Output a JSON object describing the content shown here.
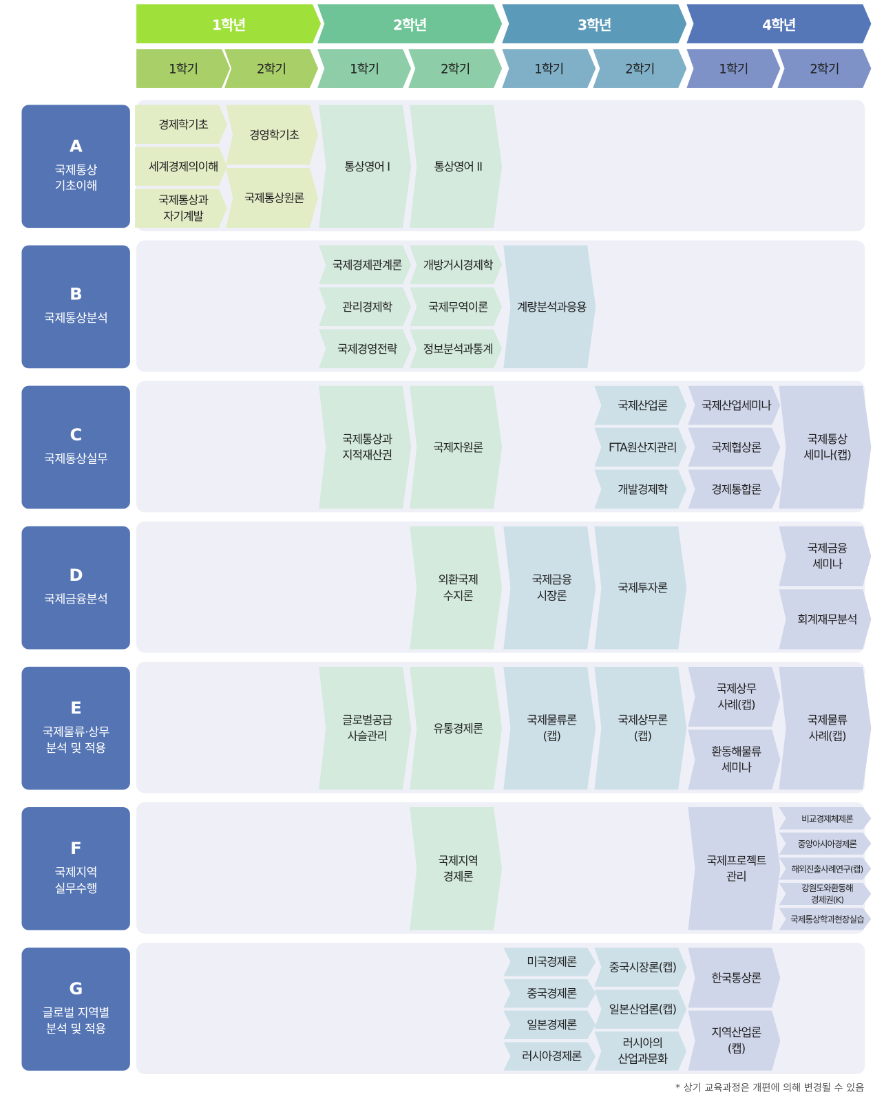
{
  "years": [
    {
      "label": "1학년",
      "color": "#9fe03a",
      "sem_color": "#a9cf69",
      "course_color": "#e2edc5"
    },
    {
      "label": "2학년",
      "color": "#6ec497",
      "sem_color": "#8dcda7",
      "course_color": "#d3eadc"
    },
    {
      "label": "3학년",
      "color": "#5b9ab8",
      "sem_color": "#7fb0c8",
      "course_color": "#cde0e8"
    },
    {
      "label": "4학년",
      "color": "#5577b8",
      "sem_color": "#7f92c8",
      "course_color": "#d0d6ea"
    }
  ],
  "semesters": [
    "1학기",
    "2학기",
    "1학기",
    "2학기",
    "1학기",
    "2학기",
    "1학기",
    "2학기"
  ],
  "label_color": "#5474b4",
  "rows": [
    {
      "letter": "A",
      "title": "국제통상\n기초이해",
      "cells": [
        {
          "col": 0,
          "items": [
            "경제학기초",
            "세계경제의이해",
            "국제통상과\n자기계발"
          ]
        },
        {
          "col": 1,
          "items": [
            "경영학기초",
            "국제통상원론"
          ]
        },
        {
          "col": 2,
          "items": [
            "통상영어 I"
          ]
        },
        {
          "col": 3,
          "items": [
            "통상영어 II"
          ]
        }
      ]
    },
    {
      "letter": "B",
      "title": "국제통상분석",
      "cells": [
        {
          "col": 2,
          "items": [
            "국제경제관계론",
            "관리경제학",
            "국제경영전략"
          ]
        },
        {
          "col": 3,
          "items": [
            "개방거시경제학",
            "국제무역이론",
            "정보분석과통계"
          ]
        },
        {
          "col": 4,
          "items": [
            "계량분석과응용"
          ]
        }
      ]
    },
    {
      "letter": "C",
      "title": "국제통상실무",
      "cells": [
        {
          "col": 2,
          "items": [
            "국제통상과\n지적재산권"
          ]
        },
        {
          "col": 3,
          "items": [
            "국제자원론"
          ]
        },
        {
          "col": 5,
          "items": [
            "국제산업론",
            "FTA원산지관리",
            "개발경제학"
          ]
        },
        {
          "col": 6,
          "items": [
            "국제산업세미나",
            "국제협상론",
            "경제통합론"
          ]
        },
        {
          "col": 7,
          "items": [
            "국제통상\n세미나(캡)"
          ]
        }
      ]
    },
    {
      "letter": "D",
      "title": "국제금융분석",
      "cells": [
        {
          "col": 3,
          "items": [
            "외환국제\n수지론"
          ]
        },
        {
          "col": 4,
          "items": [
            "국제금융\n시장론"
          ]
        },
        {
          "col": 5,
          "items": [
            "국제투자론"
          ]
        },
        {
          "col": 7,
          "items": [
            "국제금융\n세미나",
            "회계재무분석"
          ]
        }
      ]
    },
    {
      "letter": "E",
      "title": "국제물류·상무\n분석 및 적용",
      "cells": [
        {
          "col": 2,
          "items": [
            "글로벌공급\n사슬관리"
          ]
        },
        {
          "col": 3,
          "items": [
            "유통경제론"
          ]
        },
        {
          "col": 4,
          "items": [
            "국제물류론\n(캡)"
          ]
        },
        {
          "col": 5,
          "items": [
            "국제상무론\n(캡)"
          ]
        },
        {
          "col": 6,
          "items": [
            "국제상무\n사례(캡)",
            "환동해물류\n세미나"
          ]
        },
        {
          "col": 7,
          "items": [
            "국제물류\n사례(캡)"
          ]
        }
      ]
    },
    {
      "letter": "F",
      "title": "국제지역\n실무수행",
      "cells": [
        {
          "col": 3,
          "items": [
            "국제지역\n경제론"
          ]
        },
        {
          "col": 6,
          "items": [
            "국제프로젝트\n관리"
          ]
        },
        {
          "col": 7,
          "small": true,
          "items": [
            "비교경제체제론",
            "중앙아시아경제론",
            "해외진출사례연구(캡)",
            "강원도와환동해\n경제권(K)",
            "국제통상학과현장실습"
          ]
        }
      ]
    },
    {
      "letter": "G",
      "title": "글로벌 지역별\n분석 및 적용",
      "cells": [
        {
          "col": 4,
          "items": [
            "미국경제론",
            "중국경제론",
            "일본경제론",
            "러시아경제론"
          ]
        },
        {
          "col": 5,
          "items": [
            "중국시장론(캡)",
            "일본산업론(캡)",
            "러시아의\n산업과문화"
          ]
        },
        {
          "col": 6,
          "items": [
            "한국통상론",
            "지역산업론\n(캡)"
          ]
        }
      ]
    }
  ],
  "footnote": "* 상기 교육과정은 개편에 의해 변경될 수 있음"
}
